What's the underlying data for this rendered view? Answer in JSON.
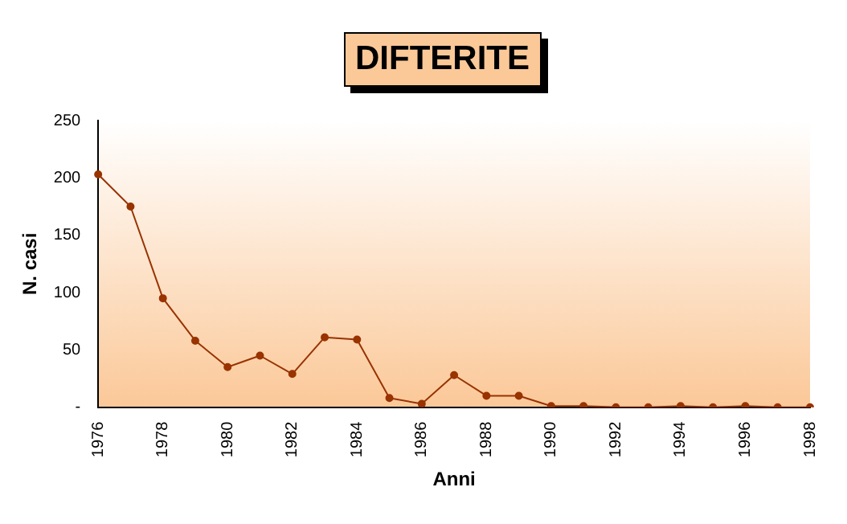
{
  "chart_data": {
    "type": "line",
    "title": "DIFTERITE",
    "xlabel": "Anni",
    "ylabel": "N. casi",
    "categories": [
      "1976",
      null,
      "1978",
      null,
      "1980",
      null,
      "1982",
      null,
      "1984",
      null,
      "1986",
      null,
      "1988",
      null,
      "1990",
      null,
      "1992",
      null,
      "1994",
      null,
      "1996",
      null,
      "1998"
    ],
    "series": [
      {
        "color": "#993300",
        "values": [
          203,
          175,
          95,
          58,
          35,
          45,
          29,
          61,
          59,
          8,
          3,
          28,
          10,
          10,
          1,
          1,
          0,
          0,
          1,
          0,
          1,
          0,
          0
        ]
      }
    ],
    "ylim": [
      0,
      250
    ],
    "yticks": [
      {
        "value": 0,
        "label": "-"
      },
      50,
      100,
      150,
      200,
      250
    ],
    "grid": false,
    "legend": false,
    "marker": "circle",
    "line_style": "solid"
  }
}
